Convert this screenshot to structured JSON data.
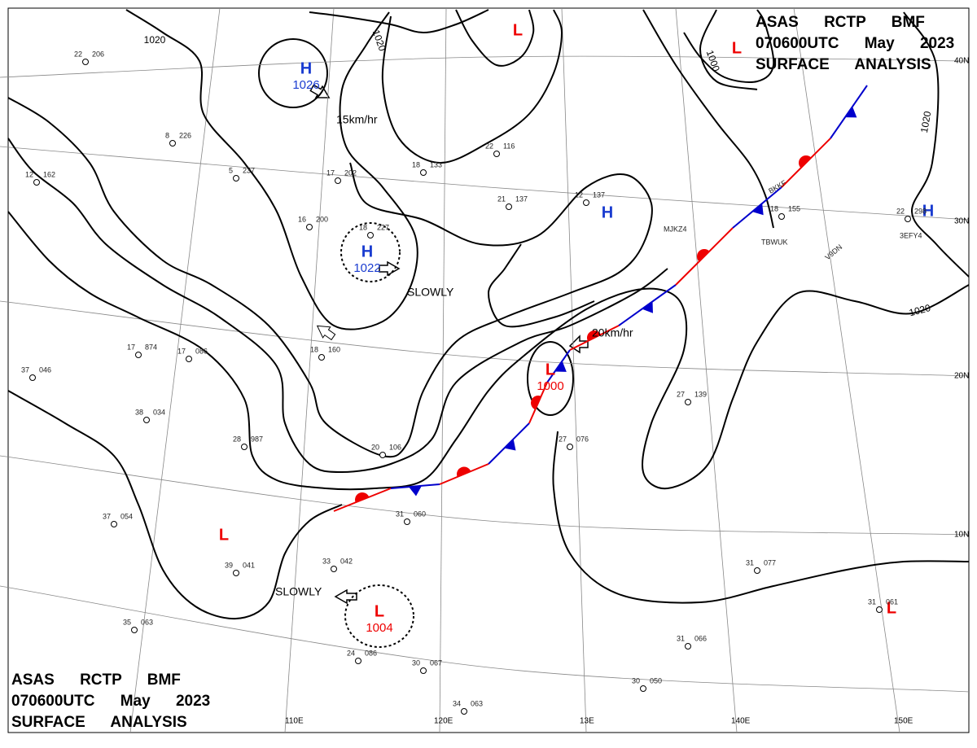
{
  "header_top": [
    "ASAS RCTP BMF",
    "070600UTC May 2023",
    "SURFACE ANALYSIS"
  ],
  "header_bottom": [
    "ASAS RCTP BMF",
    "070600UTC May 2023",
    "SURFACE ANALYSIS"
  ],
  "pressure_centers": [
    {
      "symbol": "H",
      "value": "1026"
    },
    {
      "symbol": "H",
      "value": "1022"
    },
    {
      "symbol": "L",
      "value": "1000"
    },
    {
      "symbol": "L",
      "value": "1004"
    },
    {
      "symbol": "L"
    },
    {
      "symbol": "L"
    },
    {
      "symbol": "L"
    },
    {
      "symbol": "L"
    },
    {
      "symbol": "H"
    },
    {
      "symbol": "H"
    }
  ],
  "isobar_labels": [
    "1020",
    "1020",
    "1000",
    "1020",
    "1020"
  ],
  "motions": [
    "15km/hr",
    "SLOWLY",
    "20km/hr",
    "SLOWLY"
  ],
  "lat_labels": [
    "40N",
    "30N",
    "20N",
    "10N"
  ],
  "lon_labels": [
    "110E",
    "120E",
    "13E",
    "140E",
    "150E"
  ],
  "ship_ids": [
    "BKKF",
    "MJKZ4",
    "TBWUK",
    "V9DN",
    "3EFY4"
  ],
  "stations": [
    {
      "t": "22",
      "p": "206"
    },
    {
      "t": "8",
      "p": "226"
    },
    {
      "t": "5",
      "p": "237"
    },
    {
      "t": "12",
      "p": "162"
    },
    {
      "t": "17",
      "p": "202"
    },
    {
      "t": "16",
      "p": "200"
    },
    {
      "t": "18",
      "p": "227"
    },
    {
      "t": "18",
      "p": "133"
    },
    {
      "t": "22",
      "p": "116"
    },
    {
      "t": "21",
      "p": "137"
    },
    {
      "t": "12",
      "p": "137"
    },
    {
      "t": "17",
      "p": "874"
    },
    {
      "t": "17",
      "p": "086"
    },
    {
      "t": "18",
      "p": "160"
    },
    {
      "t": "28",
      "p": "987"
    },
    {
      "t": "20",
      "p": "106"
    },
    {
      "t": "27",
      "p": "076"
    },
    {
      "t": "27",
      "p": "139"
    },
    {
      "t": "37",
      "p": "046"
    },
    {
      "t": "38",
      "p": "034"
    },
    {
      "t": "37",
      "p": "054"
    },
    {
      "t": "39",
      "p": "041"
    },
    {
      "t": "33",
      "p": "042"
    },
    {
      "t": "31",
      "p": "060"
    },
    {
      "t": "35",
      "p": "063"
    },
    {
      "t": "24",
      "p": "086"
    },
    {
      "t": "30",
      "p": "067"
    },
    {
      "t": "30",
      "p": "050"
    },
    {
      "t": "31",
      "p": "077"
    },
    {
      "t": "31",
      "p": "066"
    },
    {
      "t": "31",
      "p": "061"
    },
    {
      "t": "34",
      "p": "063"
    },
    {
      "t": "22",
      "p": "298"
    },
    {
      "t": "18",
      "p": "155"
    }
  ]
}
